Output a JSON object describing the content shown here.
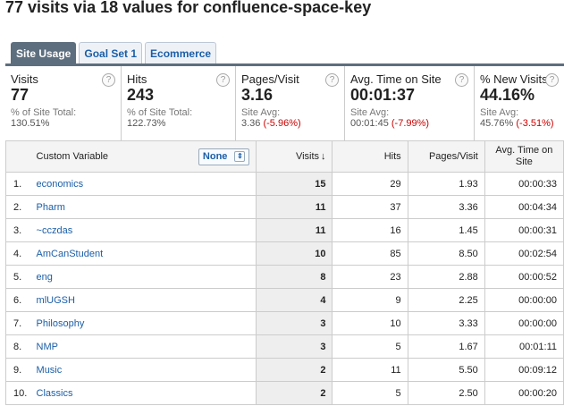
{
  "page": {
    "title": "77 visits via 18 values for confluence-space-key"
  },
  "tabs": [
    {
      "label": "Site Usage",
      "active": true
    },
    {
      "label": "Goal Set 1",
      "active": false
    },
    {
      "label": "Ecommerce",
      "active": false
    }
  ],
  "summary": [
    {
      "label": "Visits",
      "value": "77",
      "sub_label": "% of Site Total:",
      "sub_value": "130.51%",
      "sub_delta": ""
    },
    {
      "label": "Hits",
      "value": "243",
      "sub_label": "% of Site Total:",
      "sub_value": "122.73%",
      "sub_delta": ""
    },
    {
      "label": "Pages/Visit",
      "value": "3.16",
      "sub_label": "Site Avg:",
      "sub_value": "3.36",
      "sub_delta": "(-5.96%)"
    },
    {
      "label": "Avg. Time on Site",
      "value": "00:01:37",
      "sub_label": "Site Avg:",
      "sub_value": "00:01:45",
      "sub_delta": "(-7.99%)"
    },
    {
      "label": "% New Visits",
      "value": "44.16%",
      "sub_label": "Site Avg:",
      "sub_value": "45.76%",
      "sub_delta": "(-3.51%)"
    }
  ],
  "table": {
    "headers": {
      "name": "Custom Variable",
      "secondary_dimension": "None",
      "visits": "Visits",
      "hits": "Hits",
      "pages_per_visit": "Pages/Visit",
      "avg_time": "Avg. Time on Site"
    },
    "rows": [
      {
        "num": "1.",
        "name": "economics",
        "visits": "15",
        "hits": "29",
        "ppv": "1.93",
        "time": "00:00:33"
      },
      {
        "num": "2.",
        "name": "Pharm",
        "visits": "11",
        "hits": "37",
        "ppv": "3.36",
        "time": "00:04:34"
      },
      {
        "num": "3.",
        "name": "~cczdas",
        "visits": "11",
        "hits": "16",
        "ppv": "1.45",
        "time": "00:00:31"
      },
      {
        "num": "4.",
        "name": "AmCanStudent",
        "visits": "10",
        "hits": "85",
        "ppv": "8.50",
        "time": "00:02:54"
      },
      {
        "num": "5.",
        "name": "eng",
        "visits": "8",
        "hits": "23",
        "ppv": "2.88",
        "time": "00:00:52"
      },
      {
        "num": "6.",
        "name": "mlUGSH",
        "visits": "4",
        "hits": "9",
        "ppv": "2.25",
        "time": "00:00:00"
      },
      {
        "num": "7.",
        "name": "Philosophy",
        "visits": "3",
        "hits": "10",
        "ppv": "3.33",
        "time": "00:00:00"
      },
      {
        "num": "8.",
        "name": "NMP",
        "visits": "3",
        "hits": "5",
        "ppv": "1.67",
        "time": "00:01:11"
      },
      {
        "num": "9.",
        "name": "Music",
        "visits": "2",
        "hits": "11",
        "ppv": "5.50",
        "time": "00:09:12"
      },
      {
        "num": "10.",
        "name": "Classics",
        "visits": "2",
        "hits": "5",
        "ppv": "2.50",
        "time": "00:00:20"
      }
    ]
  }
}
